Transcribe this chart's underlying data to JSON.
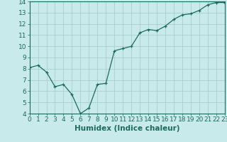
{
  "x": [
    0,
    1,
    2,
    3,
    4,
    5,
    6,
    7,
    8,
    9,
    10,
    11,
    12,
    13,
    14,
    15,
    16,
    17,
    18,
    19,
    20,
    21,
    22,
    23
  ],
  "y": [
    8.1,
    8.3,
    7.7,
    6.4,
    6.6,
    5.7,
    4.0,
    4.5,
    6.6,
    6.7,
    9.6,
    9.8,
    10.0,
    11.2,
    11.5,
    11.4,
    11.8,
    12.4,
    12.8,
    12.9,
    13.2,
    13.7,
    13.9,
    13.9
  ],
  "xlabel": "Humidex (Indice chaleur)",
  "ylim": [
    4,
    14
  ],
  "xlim": [
    0,
    23
  ],
  "yticks": [
    4,
    5,
    6,
    7,
    8,
    9,
    10,
    11,
    12,
    13,
    14
  ],
  "xticks": [
    0,
    1,
    2,
    3,
    4,
    5,
    6,
    7,
    8,
    9,
    10,
    11,
    12,
    13,
    14,
    15,
    16,
    17,
    18,
    19,
    20,
    21,
    22,
    23
  ],
  "line_color": "#1a6b5e",
  "marker": "+",
  "bg_color": "#c8eaea",
  "grid_color": "#a8cece",
  "xlabel_fontsize": 7.5,
  "tick_fontsize": 6.5
}
